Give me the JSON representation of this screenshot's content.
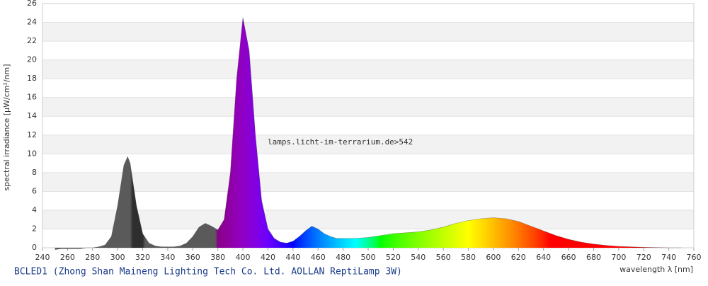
{
  "chart_data": {
    "type": "area",
    "title": "BCLED1 (Zhong Shan Maineng Lighting Tech Co. Ltd. AOLLAN ReptiLamp 3W)",
    "annotation": "lamps.licht-im-terrarium.de>542",
    "x_label": "wavelength λ [nm]",
    "y_label": "spectral irradiance [µW/cm²/nm]",
    "xlim": [
      240,
      760
    ],
    "ylim": [
      0,
      26
    ],
    "xticks": [
      240,
      260,
      280,
      300,
      320,
      340,
      360,
      380,
      400,
      420,
      440,
      460,
      480,
      500,
      520,
      540,
      560,
      580,
      600,
      620,
      640,
      660,
      680,
      700,
      720,
      740,
      760
    ],
    "yticks": [
      0,
      2,
      4,
      6,
      8,
      10,
      12,
      14,
      16,
      18,
      20,
      22,
      24,
      26
    ],
    "grid": true,
    "x": [
      250,
      255,
      260,
      265,
      270,
      275,
      280,
      285,
      290,
      295,
      300,
      305,
      308,
      310,
      315,
      320,
      325,
      330,
      335,
      340,
      345,
      350,
      355,
      360,
      365,
      370,
      375,
      380,
      385,
      390,
      395,
      400,
      405,
      410,
      415,
      420,
      425,
      430,
      435,
      440,
      445,
      450,
      455,
      460,
      465,
      470,
      475,
      480,
      490,
      500,
      510,
      520,
      530,
      540,
      550,
      560,
      570,
      580,
      590,
      600,
      610,
      620,
      630,
      640,
      650,
      660,
      670,
      680,
      690,
      700,
      710,
      720,
      730,
      740,
      750
    ],
    "y": [
      -0.2,
      -0.1,
      -0.1,
      -0.1,
      -0.1,
      0,
      0,
      0.1,
      0.3,
      1.2,
      4.5,
      8.8,
      9.7,
      9.0,
      4.5,
      1.5,
      0.5,
      0.2,
      0.1,
      0.1,
      0.1,
      0.2,
      0.5,
      1.2,
      2.2,
      2.6,
      2.3,
      1.9,
      3,
      8,
      18,
      24.5,
      21,
      12,
      5,
      2,
      1,
      0.6,
      0.5,
      0.7,
      1.2,
      1.8,
      2.3,
      2.0,
      1.5,
      1.2,
      1.0,
      1.0,
      1.0,
      1.1,
      1.3,
      1.5,
      1.6,
      1.7,
      1.9,
      2.2,
      2.6,
      2.9,
      3.1,
      3.2,
      3.1,
      2.8,
      2.3,
      1.8,
      1.3,
      0.9,
      0.6,
      0.4,
      0.25,
      0.15,
      0.1,
      0.05,
      0.02,
      0,
      0
    ]
  }
}
